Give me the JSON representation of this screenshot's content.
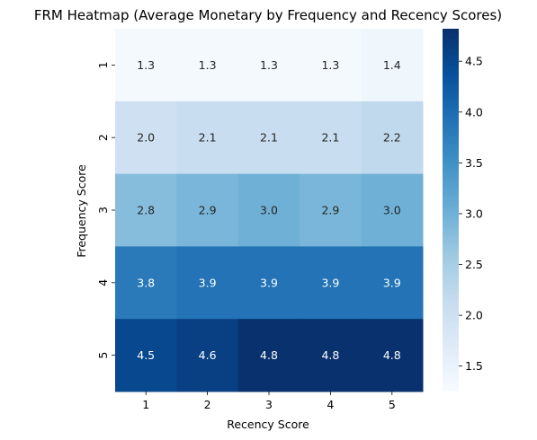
{
  "chart_data": {
    "type": "heatmap",
    "title": "FRM Heatmap (Average Monetary by Frequency and Recency Scores)",
    "xlabel": "Recency Score",
    "ylabel": "Frequency Score",
    "x_categories": [
      "1",
      "2",
      "3",
      "4",
      "5"
    ],
    "y_categories": [
      "1",
      "2",
      "3",
      "4",
      "5"
    ],
    "values": [
      [
        1.3,
        1.3,
        1.3,
        1.3,
        1.4
      ],
      [
        2.0,
        2.1,
        2.1,
        2.1,
        2.2
      ],
      [
        2.8,
        2.9,
        3.0,
        2.9,
        3.0
      ],
      [
        3.8,
        3.9,
        3.9,
        3.9,
        3.9
      ],
      [
        4.5,
        4.6,
        4.8,
        4.8,
        4.8
      ]
    ],
    "value_format": "1 decimal",
    "colormap": "Blues",
    "color_range": [
      1.25,
      4.82
    ],
    "colorbar": {
      "ticks": [
        "1.5",
        "2.0",
        "2.5",
        "3.0",
        "3.5",
        "4.0",
        "4.5"
      ],
      "tick_values": [
        1.5,
        2.0,
        2.5,
        3.0,
        3.5,
        4.0,
        4.5
      ]
    },
    "grid": false,
    "legend": "colorbar right"
  }
}
